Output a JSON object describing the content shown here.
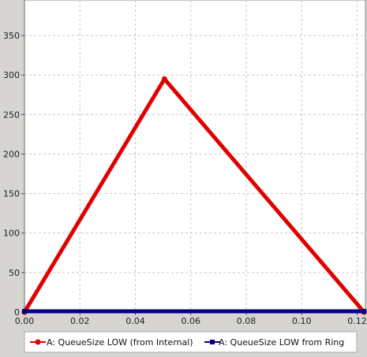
{
  "chart_data": {
    "type": "line",
    "title": "",
    "xlabel": "",
    "ylabel": "",
    "xlim": [
      0.0,
      0.123
    ],
    "ylim": [
      0,
      395
    ],
    "x_ticks": [
      0.0,
      0.02,
      0.04,
      0.06,
      0.08,
      0.1,
      0.12
    ],
    "x_tick_labels": [
      "0.00",
      "0.02",
      "0.04",
      "0.06",
      "0.08",
      "0.10",
      "0.12"
    ],
    "y_ticks": [
      0,
      50,
      100,
      150,
      200,
      250,
      300,
      350
    ],
    "y_tick_labels": [
      "0",
      "50",
      "100",
      "150",
      "200",
      "250",
      "300",
      "350"
    ],
    "grid": true,
    "legend_position": "bottom",
    "series": [
      {
        "name": "A: QueueSize LOW (from Internal)",
        "color": "#e00000",
        "marker": "circle",
        "x": [
          0.0,
          0.0505,
          0.1225
        ],
        "y": [
          0,
          295,
          0
        ]
      },
      {
        "name": "A: QueueSize LOW from Ring",
        "color": "#00008b",
        "marker": "square",
        "x": [
          0.0,
          0.1225
        ],
        "y": [
          1,
          1
        ]
      }
    ]
  },
  "colors": {
    "plot_background": "#ffffff",
    "figure_background": "#d6d5d1",
    "grid": "#c8c8c8"
  }
}
